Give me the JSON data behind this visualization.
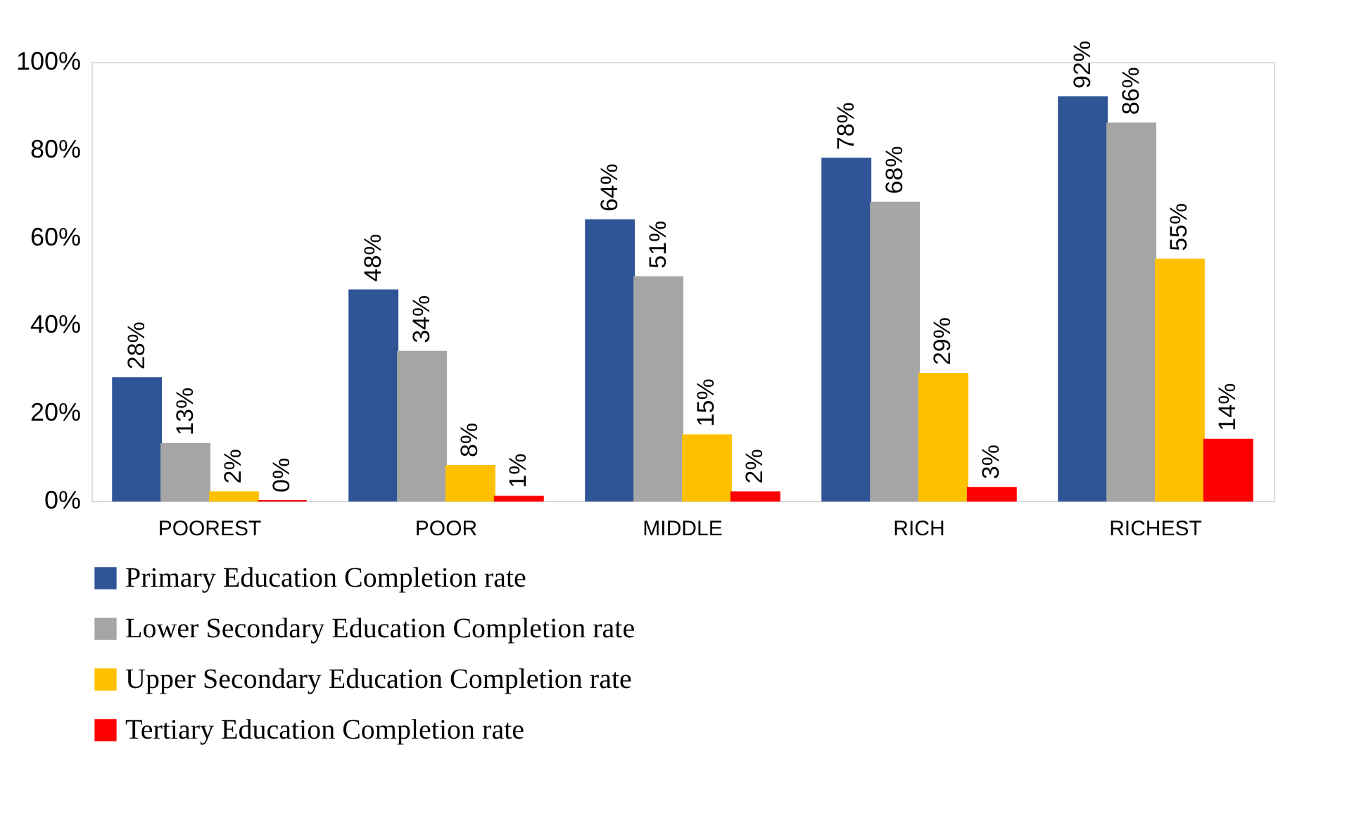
{
  "chart_data": {
    "type": "bar",
    "categories": [
      "POOREST",
      "POOR",
      "MIDDLE",
      "RICH",
      "RICHEST"
    ],
    "series": [
      {
        "name": "Primary Education Completion rate",
        "color": "#2f5597",
        "values": [
          28,
          48,
          64,
          78,
          92
        ],
        "value_labels": [
          "28%",
          "48%",
          "64%",
          "78%",
          "92%"
        ]
      },
      {
        "name": "Lower Secondary Education Completion rate",
        "color": "#a5a5a5",
        "values": [
          13,
          34,
          51,
          68,
          86
        ],
        "value_labels": [
          "13%",
          "34%",
          "51%",
          "68%",
          "86%"
        ]
      },
      {
        "name": "Upper Secondary Education Completion rate",
        "color": "#ffc000",
        "values": [
          2,
          8,
          15,
          29,
          55
        ],
        "value_labels": [
          "2%",
          "8%",
          "15%",
          "29%",
          "55%"
        ]
      },
      {
        "name": "Tertiary Education Completion rate",
        "color": "#ff0000",
        "values": [
          0,
          1,
          2,
          3,
          14
        ],
        "value_labels": [
          "0%",
          "1%",
          "2%",
          "3%",
          "14%"
        ]
      }
    ],
    "ylim": [
      0,
      100
    ],
    "yticks": [
      {
        "value": 0,
        "label": "0%"
      },
      {
        "value": 20,
        "label": "20%"
      },
      {
        "value": 40,
        "label": "40%"
      },
      {
        "value": 60,
        "label": "60%"
      },
      {
        "value": 80,
        "label": "80%"
      },
      {
        "value": 100,
        "label": "100%"
      }
    ],
    "grid": false,
    "legend": "bottom"
  }
}
